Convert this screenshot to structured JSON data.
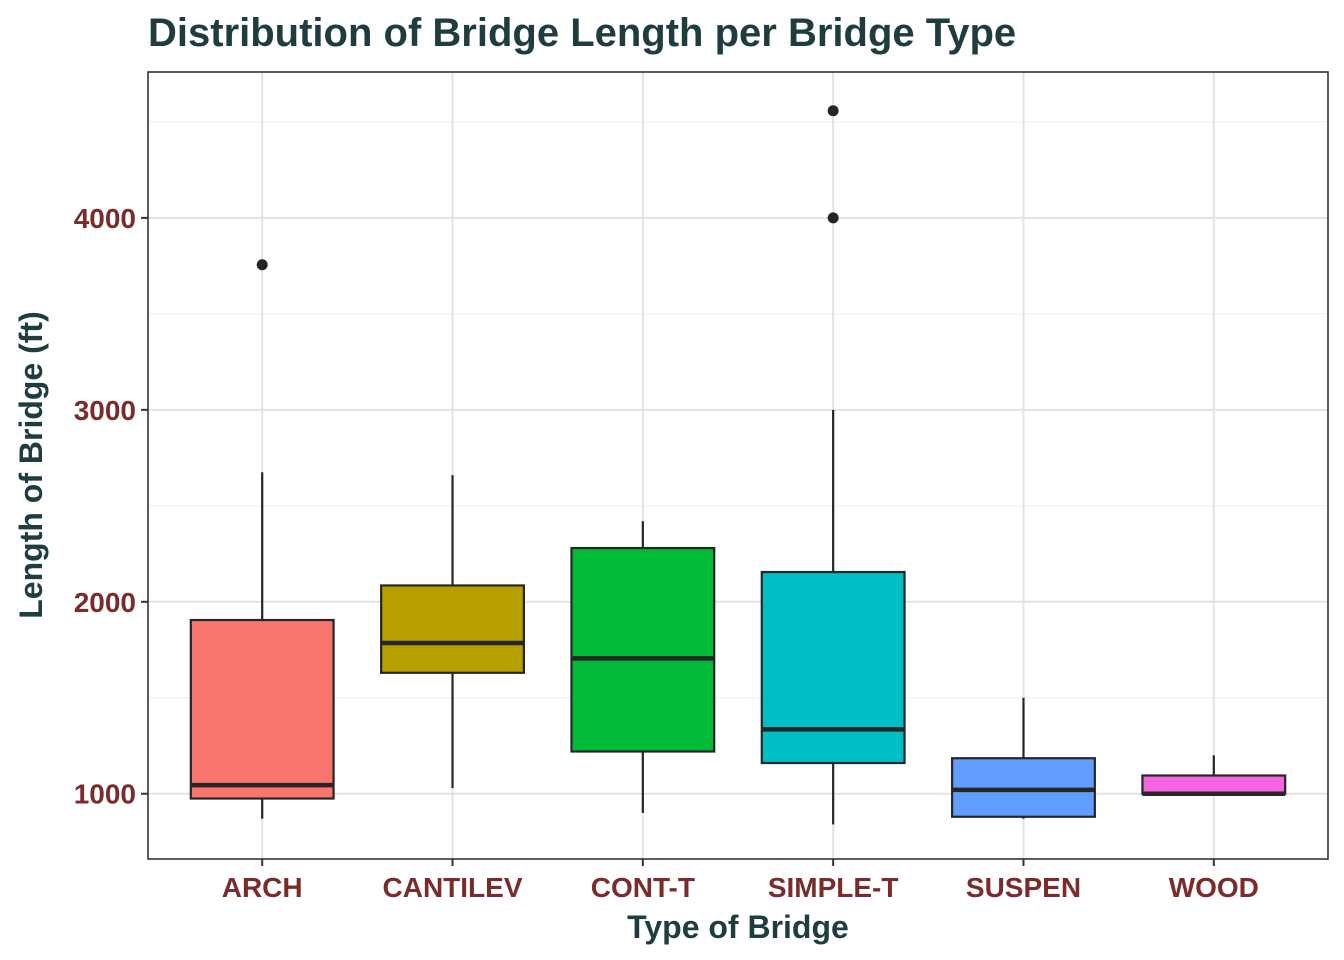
{
  "chart_data": {
    "type": "boxplot",
    "title": "Distribution of Bridge Length per Bridge Type",
    "xlabel": "Type of Bridge",
    "ylabel": "Length of Bridge (ft)",
    "ylim": [
      660,
      4760
    ],
    "yticks": [
      1000,
      2000,
      3000,
      4000
    ],
    "grid": true,
    "legend": "none",
    "colors": {
      "title": "#1f3d3f",
      "axis_title": "#1f3d3f",
      "tick_label": "#7a2b2b",
      "grid_major": "#e3e3e3",
      "grid_minor": "#f0f0f0",
      "panel_border": "#333333",
      "outline": "#262626"
    },
    "categories": [
      "ARCH",
      "CANTILEV",
      "CONT-T",
      "SIMPLE-T",
      "SUSPEN",
      "WOOD"
    ],
    "boxes": [
      {
        "category": "ARCH",
        "min": 870,
        "q1": 975,
        "median": 1045,
        "q3": 1905,
        "max": 2675,
        "outliers": [
          3756
        ],
        "color": "#F8766D"
      },
      {
        "category": "CANTILEV",
        "min": 1030,
        "q1": 1630,
        "median": 1785,
        "q3": 2085,
        "max": 2660,
        "outliers": [],
        "color": "#B79F00"
      },
      {
        "category": "CONT-T",
        "min": 900,
        "q1": 1220,
        "median": 1705,
        "q3": 2280,
        "max": 2420,
        "outliers": [],
        "color": "#00BA38"
      },
      {
        "category": "SIMPLE-T",
        "min": 840,
        "q1": 1160,
        "median": 1335,
        "q3": 2155,
        "max": 3000,
        "outliers": [
          4000,
          4558
        ],
        "color": "#00BFC4"
      },
      {
        "category": "SUSPEN",
        "min": 870,
        "q1": 880,
        "median": 1020,
        "q3": 1185,
        "max": 1500,
        "outliers": [],
        "color": "#619CFF"
      },
      {
        "category": "WOOD",
        "min": 1000,
        "q1": 1000,
        "median": 1000,
        "q3": 1095,
        "max": 1200,
        "outliers": [],
        "color": "#F564E3"
      }
    ]
  }
}
